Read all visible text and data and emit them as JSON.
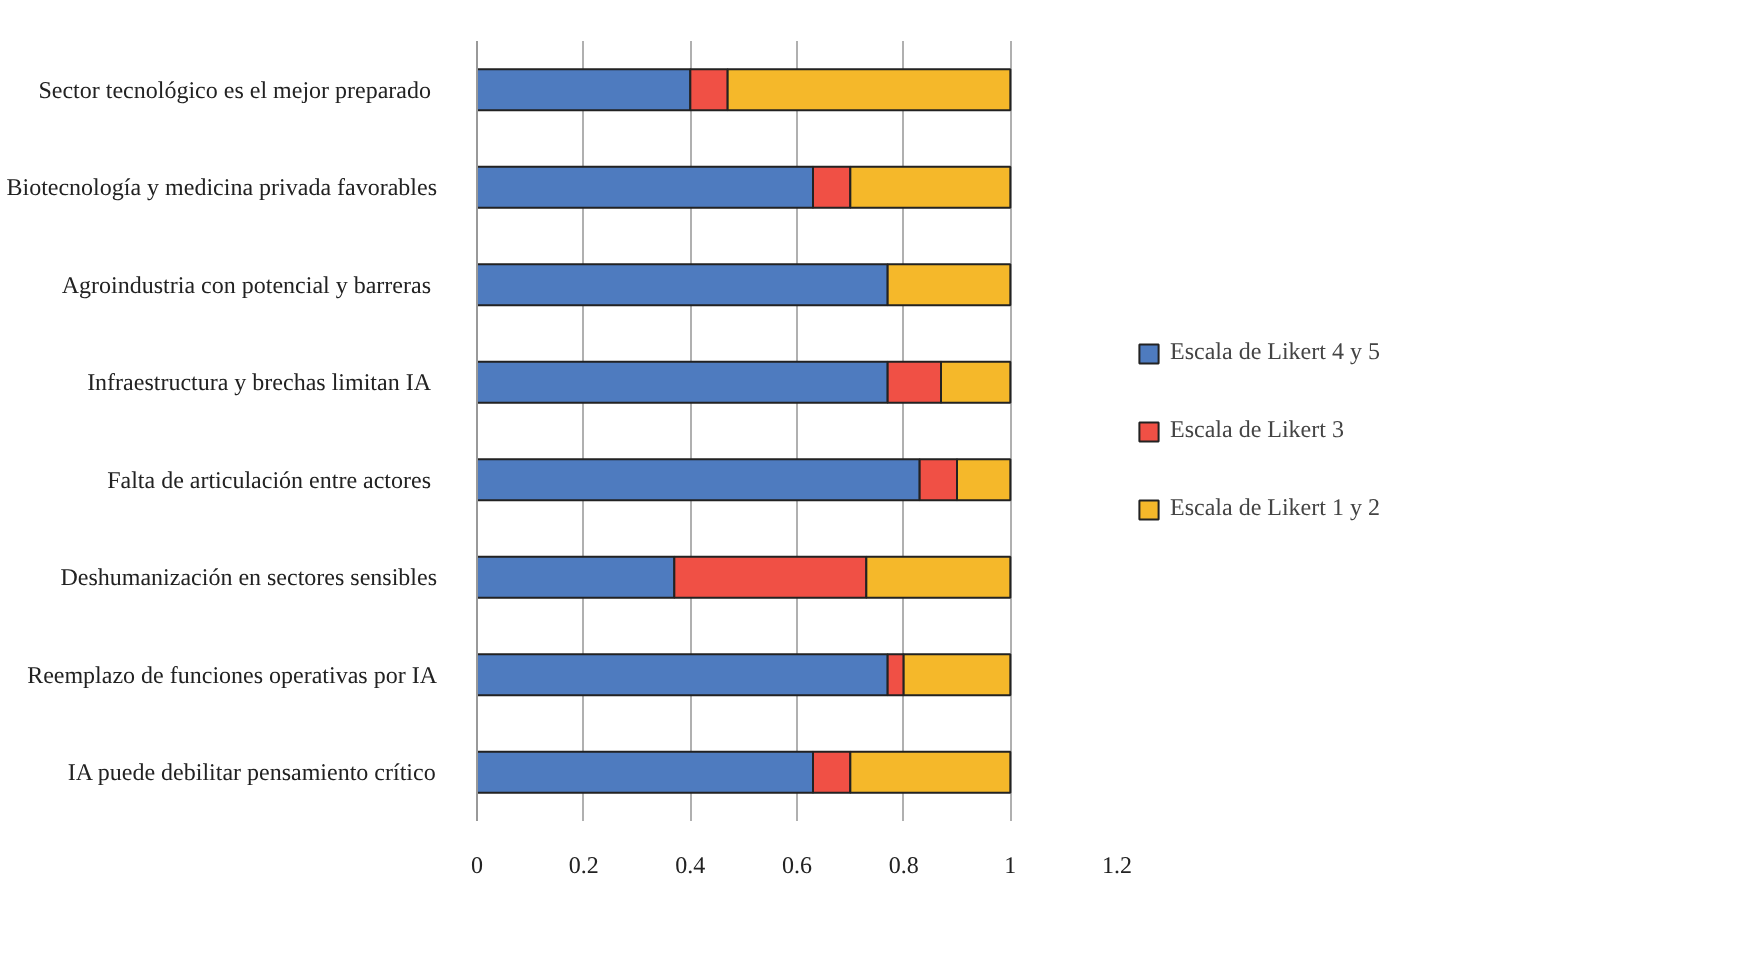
{
  "chart_data": {
    "type": "bar",
    "orientation": "horizontal",
    "stacked": true,
    "categories": [
      "Sector tecnológico  es el mejor preparado",
      "Biotecnología y medicina privada favorables",
      "Agroindustria con potencial  y barreras",
      "Infraestructura y brechas limitan  IA",
      "Falta de articulación  entre actores",
      "Deshumanización en sectores sensibles",
      "Reemplazo de funciones operativas por IA",
      "IA puede debilitar pensamiento crítico"
    ],
    "series": [
      {
        "name": "Escala de Likert 4 y 5",
        "color": "#4e7bbf",
        "values": [
          0.4,
          0.63,
          0.77,
          0.77,
          0.83,
          0.37,
          0.77,
          0.63
        ]
      },
      {
        "name": "Escala de Likert 3",
        "color": "#f05045",
        "values": [
          0.07,
          0.07,
          0,
          0.1,
          0.07,
          0.36,
          0.03,
          0.07
        ]
      },
      {
        "name": "Escala de Likert 1 y 2",
        "color": "#f5b82a",
        "values": [
          0.53,
          0.3,
          0.23,
          0.13,
          0.1,
          0.27,
          0.2,
          0.3
        ]
      }
    ],
    "xlim": [
      0,
      1.2
    ],
    "xticks": [
      0,
      0.2,
      0.4,
      0.6,
      0.8,
      1,
      1.2
    ],
    "grid": "x",
    "legend": "right"
  }
}
